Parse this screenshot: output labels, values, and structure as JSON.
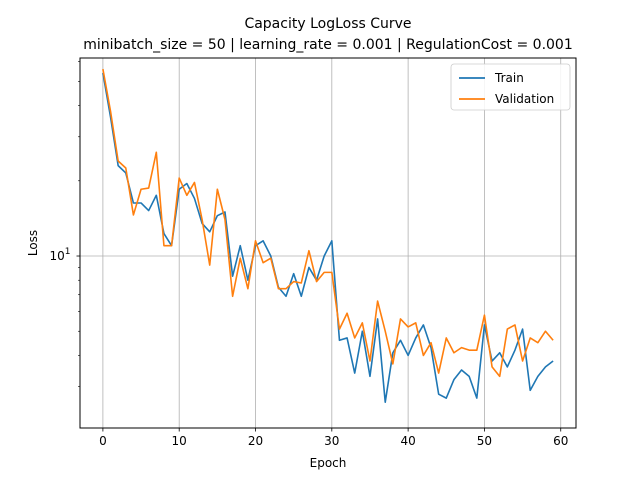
{
  "chart_data": {
    "type": "line",
    "title": "Capacity LogLoss Curve",
    "subtitle": "minibatch_size = 50 | learning_rate = 0.001 | RegulationCost = 0.001",
    "xlabel": "Epoch",
    "ylabel": "Loss",
    "yscale": "log",
    "xlim": [
      -3,
      62
    ],
    "ylim": [
      2.05,
      62
    ],
    "x_ticks": [
      0,
      10,
      20,
      30,
      40,
      50,
      60
    ],
    "y_major_ticks": [
      {
        "value": 10,
        "base": "10",
        "exp": "1"
      }
    ],
    "y_minor_ticks": [
      3,
      4,
      5,
      6,
      7,
      8,
      9,
      20,
      30,
      40,
      50,
      60
    ],
    "grid": true,
    "legend": "top-right",
    "x": [
      0,
      1,
      2,
      3,
      4,
      5,
      6,
      7,
      8,
      9,
      10,
      11,
      12,
      13,
      14,
      15,
      16,
      17,
      18,
      19,
      20,
      21,
      22,
      23,
      24,
      25,
      26,
      27,
      28,
      29,
      30,
      31,
      32,
      33,
      34,
      35,
      36,
      37,
      38,
      39,
      40,
      41,
      42,
      43,
      44,
      45,
      46,
      47,
      48,
      49,
      50,
      51,
      52,
      53,
      54,
      55,
      56,
      57,
      58,
      59
    ],
    "series": [
      {
        "name": "Train",
        "color": "#1f77b4",
        "values": [
          54,
          36,
          23,
          21.5,
          16.3,
          16.3,
          15.2,
          17.5,
          12.3,
          11,
          18.5,
          19.5,
          17,
          13.5,
          12.5,
          14.5,
          15,
          8.3,
          11,
          8,
          11,
          11.5,
          10,
          7.5,
          6.9,
          8.5,
          6.9,
          9,
          8,
          10,
          11.5,
          4.6,
          4.7,
          3.4,
          5,
          3.3,
          5.6,
          2.6,
          4.1,
          4.6,
          4,
          4.7,
          5.3,
          4.3,
          2.8,
          2.7,
          3.2,
          3.5,
          3.3,
          2.7,
          5.3,
          3.8,
          4.1,
          3.6,
          4.2,
          5.1,
          2.9,
          3.3,
          3.6,
          3.8
        ]
      },
      {
        "name": "Validation",
        "color": "#ff7f0e",
        "values": [
          56,
          38,
          24,
          22.5,
          14.6,
          18.5,
          18.7,
          26,
          11,
          11,
          20.5,
          17.5,
          19.7,
          14,
          9.2,
          18.5,
          14,
          6.9,
          9.8,
          7.4,
          11.5,
          9.4,
          9.8,
          7.4,
          7.4,
          7.9,
          7.8,
          10.5,
          7.9,
          8.6,
          8.6,
          5.1,
          5.9,
          4.7,
          5.4,
          3.8,
          6.6,
          5,
          3.7,
          5.6,
          5.2,
          5.4,
          4,
          4.5,
          3.4,
          4.7,
          4.1,
          4.3,
          4.2,
          4.2,
          5.8,
          3.6,
          3.3,
          5.1,
          5.3,
          3.8,
          4.7,
          4.5,
          5,
          4.6
        ]
      }
    ]
  }
}
